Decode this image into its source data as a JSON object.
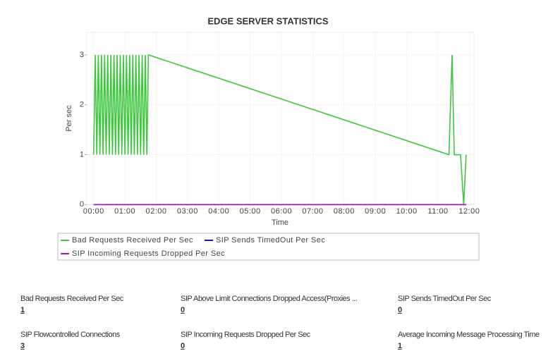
{
  "chart_data": {
    "type": "line",
    "title": "EDGE SERVER STATISTICS",
    "x_label": "Time",
    "y_label": "Per sec",
    "xlim": [
      -0.22,
      12.15
    ],
    "ylim": [
      -0.08,
      3.45
    ],
    "xticks": [
      {
        "value": 0,
        "label": "00:00"
      },
      {
        "value": 1,
        "label": "01:00"
      },
      {
        "value": 2,
        "label": "02:00"
      },
      {
        "value": 3,
        "label": "03:00"
      },
      {
        "value": 4,
        "label": "04:00"
      },
      {
        "value": 5,
        "label": "05:00"
      },
      {
        "value": 6,
        "label": "06:00"
      },
      {
        "value": 7,
        "label": "07:00"
      },
      {
        "value": 8,
        "label": "08:00"
      },
      {
        "value": 9,
        "label": "09:00"
      },
      {
        "value": 10,
        "label": "10:00"
      },
      {
        "value": 11,
        "label": "11:00"
      },
      {
        "value": 12,
        "label": "12:00"
      }
    ],
    "yticks": [
      0,
      1,
      2,
      3
    ],
    "grid": true,
    "legend": "bottom",
    "series": [
      {
        "name": "Bad Requests Received Per Sec",
        "color": "#3cc83c",
        "x": [
          0,
          0.05,
          0.1,
          0.15,
          0.2,
          0.25,
          0.3,
          0.35,
          0.4,
          0.45,
          0.5,
          0.55,
          0.6,
          0.65,
          0.7,
          0.75,
          0.8,
          0.85,
          0.9,
          0.95,
          1,
          1.05,
          1.1,
          1.15,
          1.2,
          1.25,
          1.3,
          1.35,
          1.4,
          1.45,
          1.5,
          1.55,
          1.6,
          1.65,
          1.7,
          1.75,
          11.35,
          11.45,
          11.52,
          11.72,
          11.82,
          11.9
        ],
        "values": [
          1,
          3,
          1,
          3,
          1,
          3,
          1,
          3,
          1,
          3,
          1,
          3,
          1,
          3,
          1,
          3,
          1,
          3,
          1,
          3,
          1,
          3,
          1,
          3,
          1,
          3,
          1,
          3,
          1,
          3,
          1,
          3,
          1,
          3,
          1,
          3,
          1,
          3,
          1,
          1,
          0,
          1
        ]
      },
      {
        "name": "SIP Sends TimedOut Per Sec",
        "color": "#1a1a9c",
        "x": [
          0,
          11.9
        ],
        "values": [
          0,
          0
        ]
      },
      {
        "name": "SIP Incoming Requests Dropped Per Sec",
        "color": "#b012b0",
        "x": [
          0,
          11.9
        ],
        "values": [
          0,
          0
        ]
      }
    ]
  },
  "stats": [
    {
      "label": "Bad Requests Received Per Sec",
      "value": 1
    },
    {
      "label": "SIP Above Limit Connections Dropped Access(Proxies ...",
      "value": 0
    },
    {
      "label": "SIP Sends TimedOut Per Sec",
      "value": 0
    },
    {
      "label": "SIP Flowcontrolled Connections",
      "value": 3
    },
    {
      "label": "SIP Incoming Requests Dropped Per Sec",
      "value": 0
    },
    {
      "label": "Average Incoming Message Processing Time",
      "value": 1
    }
  ]
}
